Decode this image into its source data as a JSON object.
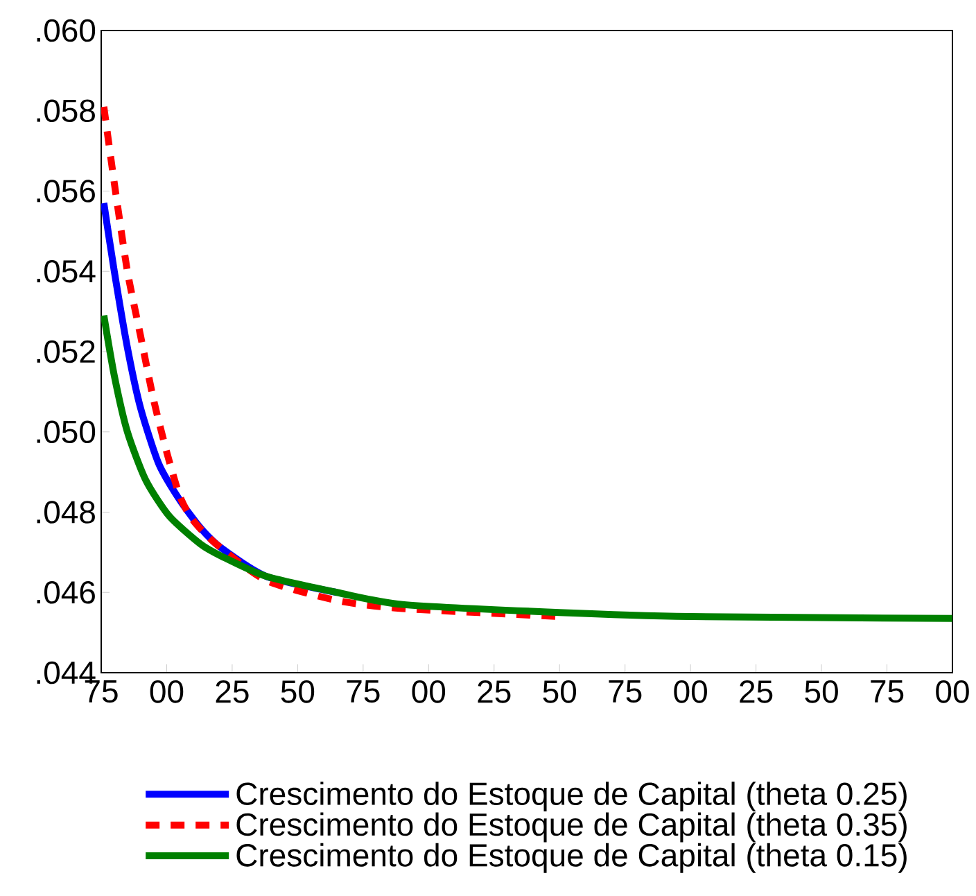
{
  "chart_data": {
    "type": "line",
    "xlim": [
      "1975",
      "2300"
    ],
    "ylim": [
      0.044,
      0.06
    ],
    "xticks": [
      {
        "value": "1975",
        "label": "75"
      },
      {
        "value": "2000",
        "label": "00"
      },
      {
        "value": "2025",
        "label": "25"
      },
      {
        "value": "2050",
        "label": "50"
      },
      {
        "value": "2075",
        "label": "75"
      },
      {
        "value": "2100",
        "label": "00"
      },
      {
        "value": "2125",
        "label": "25"
      },
      {
        "value": "2150",
        "label": "50"
      },
      {
        "value": "2175",
        "label": "75"
      },
      {
        "value": "2200",
        "label": "00"
      },
      {
        "value": "2225",
        "label": "25"
      },
      {
        "value": "2250",
        "label": "50"
      },
      {
        "value": "2275",
        "label": "75"
      },
      {
        "value": "2300",
        "label": "00"
      }
    ],
    "yticks": [
      {
        "value": 0.044,
        "label": ".044"
      },
      {
        "value": 0.046,
        "label": ".046"
      },
      {
        "value": 0.048,
        "label": ".048"
      },
      {
        "value": 0.05,
        "label": ".050"
      },
      {
        "value": 0.052,
        "label": ".052"
      },
      {
        "value": 0.054,
        "label": ".054"
      },
      {
        "value": 0.056,
        "label": ".056"
      },
      {
        "value": 0.058,
        "label": ".058"
      },
      {
        "value": 0.06,
        "label": ".060"
      }
    ],
    "grid": false,
    "legend": "bottom",
    "marker": "none",
    "series": [
      {
        "name": "Crescimento do Estoque de Capital (theta 0.25)",
        "color": "#0000ff",
        "line_style": "solid",
        "x": [
          "1976",
          "1980",
          "1985",
          "1990",
          "1997",
          "2005",
          "2013",
          "2021",
          "2038",
          "2065"
        ],
        "values": [
          0.0557,
          0.054,
          0.0521,
          0.0506,
          0.0492,
          0.0483,
          0.0476,
          0.0471,
          0.0464,
          0.046
        ]
      },
      {
        "name": "Crescimento do Estoque de Capital (theta 0.35)",
        "color": "#ff0000",
        "line_style": "dashed",
        "x": [
          "1976",
          "1980",
          "1985",
          "1990",
          "1995",
          "2000",
          "2005",
          "2010",
          "2019",
          "2038",
          "2065",
          "2090",
          "2150"
        ],
        "values": [
          0.0581,
          0.0562,
          0.054,
          0.0524,
          0.0508,
          0.0495,
          0.0484,
          0.0478,
          0.0472,
          0.0463,
          0.0458,
          0.0456,
          0.0454
        ]
      },
      {
        "name": "Crescimento do Estoque de Capital (theta 0.15)",
        "color": "#008000",
        "line_style": "solid",
        "x": [
          "1976",
          "1980",
          "1985",
          "1992",
          "2001",
          "2013",
          "2021",
          "2038",
          "2065",
          "2090",
          "2150",
          "2200",
          "2300"
        ],
        "values": [
          0.0529,
          0.0514,
          0.05,
          0.0488,
          0.0479,
          0.0472,
          0.0469,
          0.0464,
          0.046,
          0.0457,
          0.0455,
          0.0454,
          0.04535
        ]
      }
    ]
  }
}
